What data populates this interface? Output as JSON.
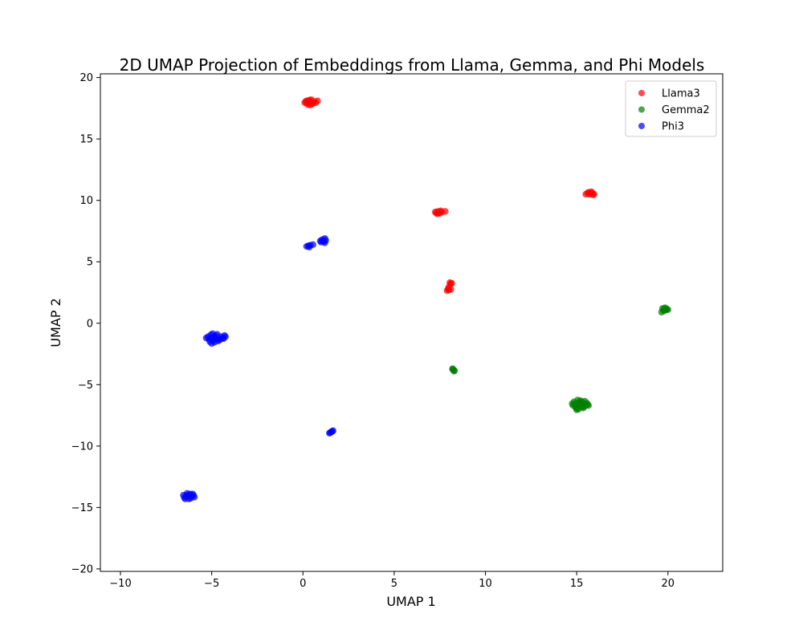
{
  "chart_data": {
    "type": "scatter",
    "title": "2D UMAP Projection of Embeddings from Llama, Gemma, and Phi Models",
    "xlabel": "UMAP 1",
    "ylabel": "UMAP 2",
    "xlim": [
      -11.1,
      23.0
    ],
    "ylim": [
      -20.2,
      20.3
    ],
    "xticks": [
      -10,
      -5,
      0,
      5,
      10,
      15,
      20
    ],
    "xtick_labels": [
      "−10",
      "−5",
      "0",
      "5",
      "10",
      "15",
      "20"
    ],
    "yticks": [
      -20,
      -15,
      -10,
      -5,
      0,
      5,
      10,
      15,
      20
    ],
    "ytick_labels": [
      "−20",
      "−15",
      "−10",
      "−5",
      "0",
      "5",
      "10",
      "15",
      "20"
    ],
    "grid": false,
    "legend_position": "top-right",
    "series": [
      {
        "name": "Llama3",
        "color": "#ff0000",
        "points": [
          [
            0.2,
            18.1
          ],
          [
            0.3,
            17.9
          ],
          [
            0.4,
            18.0
          ],
          [
            0.5,
            17.85
          ],
          [
            0.1,
            17.95
          ],
          [
            0.35,
            18.15
          ],
          [
            0.6,
            18.05
          ],
          [
            0.25,
            17.8
          ],
          [
            0.45,
            18.2
          ],
          [
            0.55,
            17.9
          ],
          [
            0.15,
            18.05
          ],
          [
            0.7,
            17.95
          ],
          [
            0.8,
            18.1
          ],
          [
            0.3,
            18.1
          ],
          [
            0.4,
            17.75
          ],
          [
            7.3,
            9.0
          ],
          [
            7.4,
            9.1
          ],
          [
            7.5,
            8.95
          ],
          [
            7.6,
            9.05
          ],
          [
            7.35,
            8.9
          ],
          [
            7.55,
            9.15
          ],
          [
            7.45,
            9.0
          ],
          [
            7.8,
            9.1
          ],
          [
            7.25,
            9.05
          ],
          [
            8.0,
            2.7
          ],
          [
            7.95,
            2.8
          ],
          [
            8.1,
            2.75
          ],
          [
            8.05,
            3.3
          ],
          [
            8.15,
            3.25
          ],
          [
            8.1,
            3.2
          ],
          [
            7.9,
            2.65
          ],
          [
            8.0,
            2.95
          ],
          [
            15.6,
            10.6
          ],
          [
            15.7,
            10.5
          ],
          [
            15.8,
            10.7
          ],
          [
            15.75,
            10.55
          ],
          [
            15.9,
            10.45
          ],
          [
            15.5,
            10.5
          ],
          [
            15.65,
            10.65
          ],
          [
            15.85,
            10.6
          ],
          [
            15.95,
            10.5
          ]
        ]
      },
      {
        "name": "Gemma2",
        "color": "#008000",
        "points": [
          [
            19.8,
            1.2
          ],
          [
            19.9,
            1.1
          ],
          [
            19.75,
            1.05
          ],
          [
            19.85,
            1.25
          ],
          [
            19.95,
            1.15
          ],
          [
            19.65,
            0.9
          ],
          [
            19.7,
            1.2
          ],
          [
            20.0,
            1.1
          ],
          [
            19.8,
            1.0
          ],
          [
            8.2,
            -3.7
          ],
          [
            8.25,
            -3.8
          ],
          [
            8.3,
            -3.85
          ],
          [
            8.2,
            -3.75
          ],
          [
            8.28,
            -3.9
          ],
          [
            15.0,
            -6.5
          ],
          [
            15.1,
            -6.7
          ],
          [
            14.9,
            -6.6
          ],
          [
            15.2,
            -6.45
          ],
          [
            15.3,
            -6.8
          ],
          [
            15.4,
            -6.55
          ],
          [
            15.5,
            -6.7
          ],
          [
            15.6,
            -6.6
          ],
          [
            14.8,
            -6.7
          ],
          [
            15.0,
            -6.9
          ],
          [
            15.1,
            -7.0
          ],
          [
            15.2,
            -6.3
          ],
          [
            15.05,
            -6.25
          ],
          [
            14.85,
            -6.4
          ],
          [
            15.45,
            -6.35
          ],
          [
            15.35,
            -6.9
          ],
          [
            15.55,
            -6.5
          ],
          [
            14.95,
            -6.85
          ],
          [
            15.25,
            -6.6
          ],
          [
            15.15,
            -6.55
          ],
          [
            15.4,
            -6.8
          ],
          [
            14.75,
            -6.55
          ],
          [
            15.65,
            -6.7
          ],
          [
            15.0,
            -7.05
          ],
          [
            15.3,
            -6.4
          ]
        ]
      },
      {
        "name": "Phi3",
        "color": "#0000ff",
        "points": [
          [
            0.2,
            6.25
          ],
          [
            0.3,
            6.3
          ],
          [
            0.4,
            6.35
          ],
          [
            0.55,
            6.4
          ],
          [
            0.35,
            6.2
          ],
          [
            1.0,
            6.6
          ],
          [
            1.1,
            6.7
          ],
          [
            1.2,
            6.55
          ],
          [
            1.05,
            6.8
          ],
          [
            1.15,
            6.65
          ],
          [
            0.95,
            6.7
          ],
          [
            1.25,
            6.75
          ],
          [
            1.2,
            6.9
          ],
          [
            -5.0,
            -1.2
          ],
          [
            -4.8,
            -1.0
          ],
          [
            -4.6,
            -1.3
          ],
          [
            -5.2,
            -1.1
          ],
          [
            -4.9,
            -1.4
          ],
          [
            -4.7,
            -0.9
          ],
          [
            -5.1,
            -1.5
          ],
          [
            -4.5,
            -1.1
          ],
          [
            -4.4,
            -1.2
          ],
          [
            -4.3,
            -1.0
          ],
          [
            -5.3,
            -1.2
          ],
          [
            -4.85,
            -1.55
          ],
          [
            -5.0,
            -1.65
          ],
          [
            -4.65,
            -1.45
          ],
          [
            -4.95,
            -0.85
          ],
          [
            -4.75,
            -1.25
          ],
          [
            -5.05,
            -0.95
          ],
          [
            -4.55,
            -1.35
          ],
          [
            -4.35,
            -1.25
          ],
          [
            -4.25,
            -1.1
          ],
          [
            -5.15,
            -1.3
          ],
          [
            -4.8,
            -1.15
          ],
          [
            1.5,
            -8.9
          ],
          [
            1.6,
            -8.8
          ],
          [
            1.55,
            -8.85
          ],
          [
            1.65,
            -8.75
          ],
          [
            1.45,
            -8.95
          ],
          [
            -6.3,
            -14.0
          ],
          [
            -6.1,
            -14.1
          ],
          [
            -6.5,
            -14.2
          ],
          [
            -6.2,
            -13.9
          ],
          [
            -6.0,
            -14.0
          ],
          [
            -6.4,
            -14.05
          ],
          [
            -6.25,
            -14.3
          ],
          [
            -6.35,
            -13.85
          ],
          [
            -6.15,
            -14.25
          ],
          [
            -6.55,
            -14.0
          ],
          [
            -5.95,
            -14.15
          ],
          [
            -6.05,
            -13.9
          ],
          [
            -6.45,
            -14.3
          ]
        ]
      }
    ]
  }
}
